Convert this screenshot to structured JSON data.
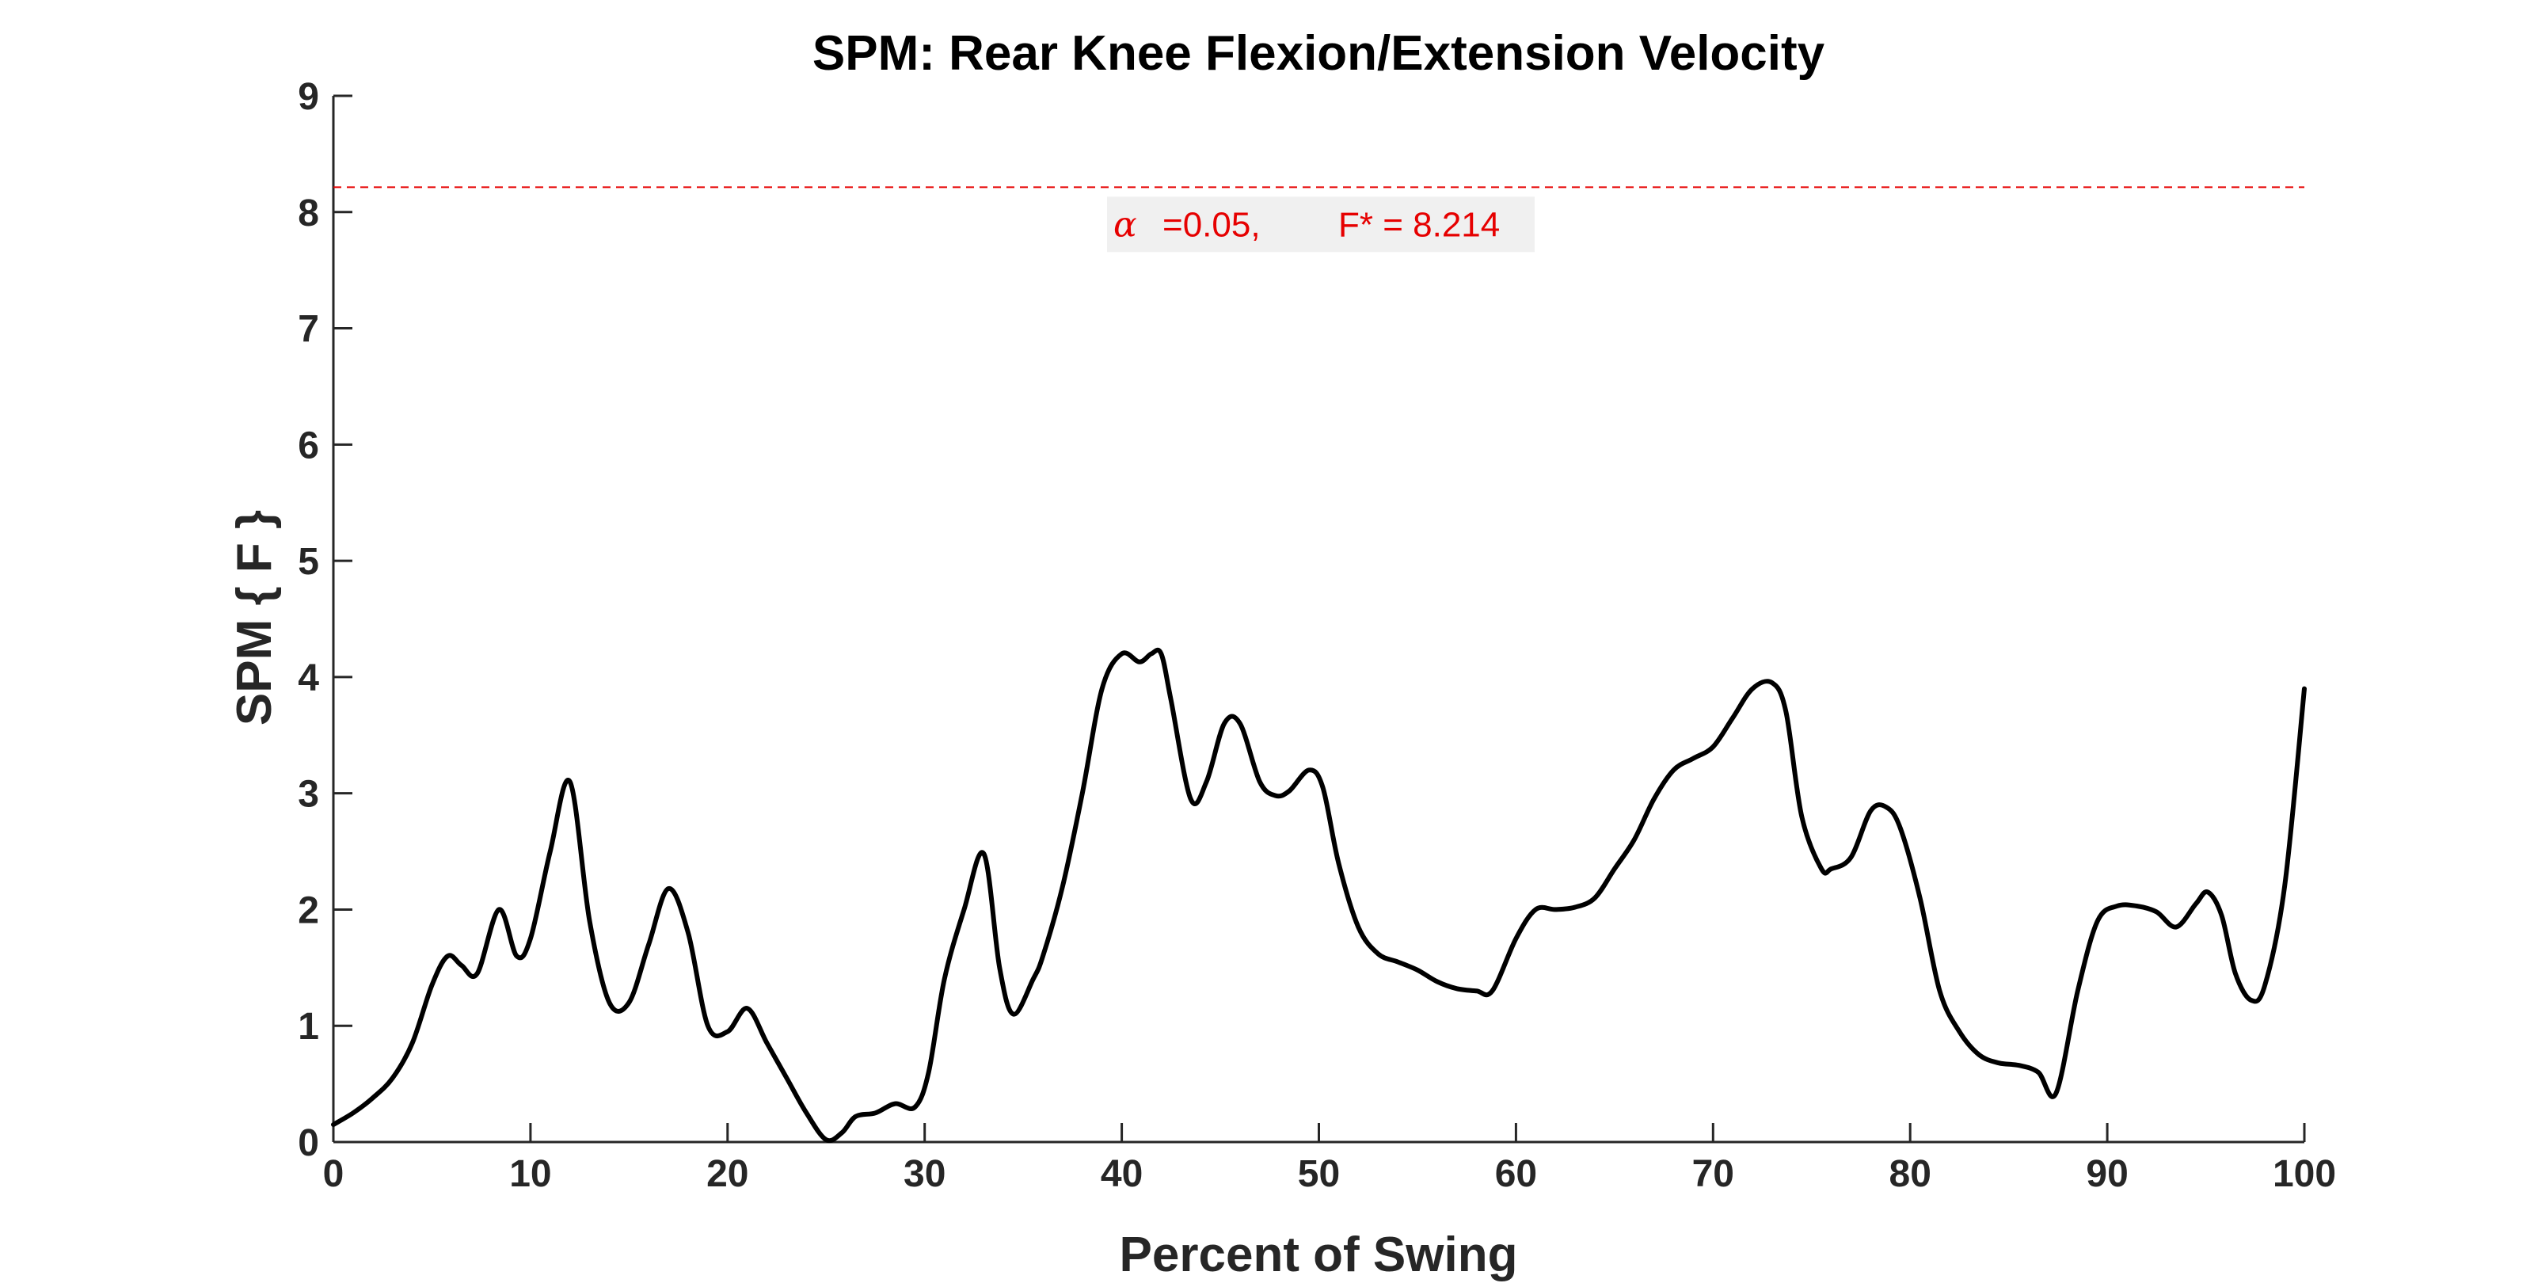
{
  "chart_data": {
    "type": "line",
    "title": "SPM: Rear Knee Flexion/Extension Velocity",
    "xlabel": "Percent of Swing",
    "ylabel": "SPM { F }",
    "xlim": [
      0,
      100
    ],
    "ylim": [
      0,
      9
    ],
    "xticks": [
      "0",
      "10",
      "20",
      "30",
      "40",
      "50",
      "60",
      "70",
      "80",
      "90",
      "100"
    ],
    "yticks": [
      "0",
      "1",
      "2",
      "3",
      "4",
      "5",
      "6",
      "7",
      "8",
      "9"
    ],
    "grid": false,
    "line_color": "#000000",
    "threshold": {
      "value": 8.214,
      "color": "#e60000",
      "alpha_symbol": "α",
      "alpha_text": "=0.05,",
      "f_text": "F* = 8.214"
    },
    "series": [
      {
        "x": [
          0,
          1,
          2,
          3,
          4,
          5,
          5.8,
          6.5,
          7.3,
          8.4,
          9.3,
          10,
          11,
          12,
          13,
          14,
          15,
          16,
          17,
          18,
          19,
          20,
          21,
          22,
          23,
          24,
          25,
          25.8,
          26.5,
          27.5,
          28.5,
          29.5,
          30.2,
          31,
          32,
          33,
          33.8,
          34.5,
          35.5,
          36,
          37,
          38,
          39,
          40,
          40.9,
          41.5,
          42,
          42.5,
          43.5,
          44.3,
          45.2,
          46,
          47,
          47.8,
          48.5,
          49.5,
          50.2,
          51,
          52,
          53,
          54,
          55,
          56,
          57,
          58,
          58.8,
          60,
          61,
          62,
          63,
          64,
          65,
          66,
          67,
          68,
          69,
          70,
          71,
          72,
          73,
          73.7,
          74.5,
          75.5,
          76,
          77,
          78,
          78.8,
          79.5,
          80.5,
          81.5,
          82.5,
          83.5,
          84.5,
          85.5,
          86.5,
          87.4,
          88.5,
          89.5,
          90.5,
          91.5,
          92.5,
          93.5,
          94.5,
          95.1,
          95.8,
          96.5,
          97.3,
          98,
          99,
          100
        ],
        "y": [
          0.15,
          0.25,
          0.38,
          0.55,
          0.85,
          1.35,
          1.6,
          1.52,
          1.45,
          2.0,
          1.6,
          1.75,
          2.5,
          3.1,
          1.9,
          1.2,
          1.2,
          1.7,
          2.18,
          1.8,
          1.0,
          0.95,
          1.15,
          0.85,
          0.55,
          0.25,
          0.02,
          0.08,
          0.22,
          0.25,
          0.33,
          0.3,
          0.6,
          1.4,
          2.0,
          2.48,
          1.5,
          1.1,
          1.4,
          1.6,
          2.2,
          3.0,
          3.9,
          4.2,
          4.13,
          4.2,
          4.2,
          3.8,
          2.95,
          3.1,
          3.6,
          3.6,
          3.1,
          2.98,
          3.02,
          3.2,
          3.05,
          2.4,
          1.85,
          1.62,
          1.55,
          1.48,
          1.38,
          1.32,
          1.3,
          1.3,
          1.75,
          2.0,
          2.0,
          2.02,
          2.1,
          2.35,
          2.6,
          2.95,
          3.2,
          3.3,
          3.4,
          3.65,
          3.9,
          3.95,
          3.7,
          2.8,
          2.35,
          2.35,
          2.45,
          2.85,
          2.88,
          2.7,
          2.1,
          1.3,
          0.95,
          0.75,
          0.68,
          0.66,
          0.6,
          0.42,
          1.3,
          1.9,
          2.03,
          2.03,
          1.98,
          1.85,
          2.05,
          2.15,
          1.95,
          1.45,
          1.22,
          1.35,
          2.2,
          3.9
        ]
      }
    ]
  }
}
